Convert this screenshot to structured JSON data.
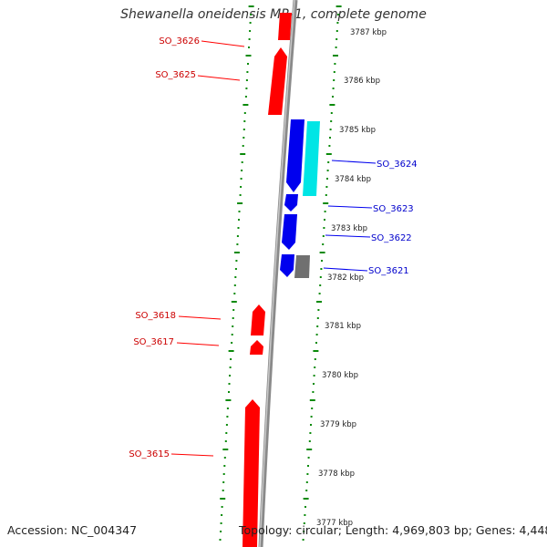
{
  "title": "Shewanella oneidensis MR-1, complete genome",
  "footer": {
    "accession": "Accession: NC_004347",
    "summary": "Topology: circular; Length: 4,969,803 bp; Genes: 4,448"
  },
  "colors": {
    "forward_gene": "#ff0000",
    "reverse_gene": "#0000ee",
    "cyan_feature": "#00e5e5",
    "grey_feature": "#707070",
    "backbone": "#8a8a8a",
    "tick_marks": "#0a8a0a",
    "forward_label": "#cc0000",
    "reverse_label": "#0000cc",
    "ruler_text": "#222222"
  },
  "ruler": {
    "unit": "kbp",
    "ticks": [
      "3787 kbp",
      "3786 kbp",
      "3785 kbp",
      "3784 kbp",
      "3783 kbp",
      "3782 kbp",
      "3781 kbp",
      "3780 kbp",
      "3779 kbp",
      "3778 kbp",
      "3777 kbp"
    ]
  },
  "forward_genes": [
    {
      "name": "SO_3626"
    },
    {
      "name": "SO_3625"
    },
    {
      "name": "SO_3618"
    },
    {
      "name": "SO_3617"
    },
    {
      "name": "SO_3615"
    }
  ],
  "reverse_genes": [
    {
      "name": "SO_3624"
    },
    {
      "name": "SO_3623"
    },
    {
      "name": "SO_3622"
    },
    {
      "name": "SO_3621"
    }
  ]
}
